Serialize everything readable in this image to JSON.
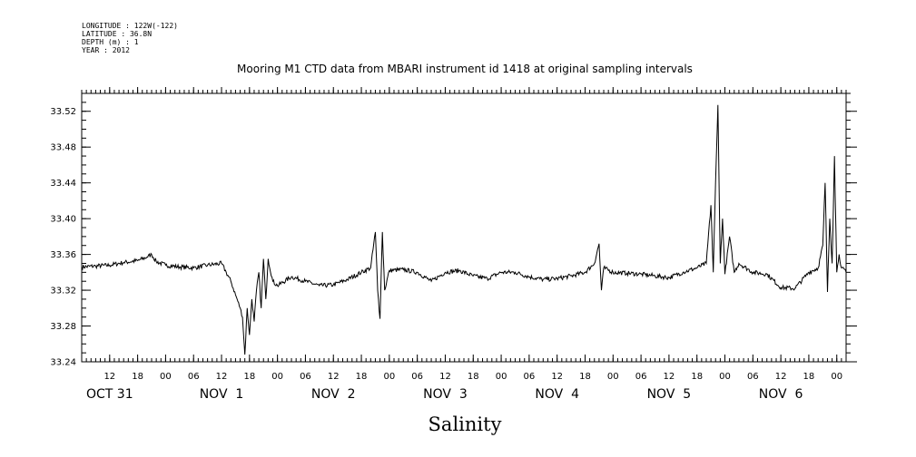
{
  "meta": {
    "longitude": "LONGITUDE : 122W(-122)",
    "latitude": "LATITUDE : 36.8N",
    "depth": "DEPTH (m) : 1",
    "year": "YEAR : 2012"
  },
  "chart_data": {
    "type": "line",
    "title": "Mooring M1 CTD data from MBARI instrument id 1418 at original sampling intervals",
    "xlabel": "Salinity",
    "ylabel": "",
    "xlim": [
      "2012-10-31 06:00",
      "2012-11-07 02:00"
    ],
    "ylim": [
      33.24,
      33.54
    ],
    "y_ticks": [
      33.24,
      33.28,
      33.32,
      33.36,
      33.4,
      33.44,
      33.48,
      33.52
    ],
    "x_hour_ticks": [
      {
        "t": "2012-10-31 12:00",
        "label": "12"
      },
      {
        "t": "2012-10-31 18:00",
        "label": "18"
      },
      {
        "t": "2012-11-01 00:00",
        "label": "00"
      },
      {
        "t": "2012-11-01 06:00",
        "label": "06"
      },
      {
        "t": "2012-11-01 12:00",
        "label": "12"
      },
      {
        "t": "2012-11-01 18:00",
        "label": "18"
      },
      {
        "t": "2012-11-02 00:00",
        "label": "00"
      },
      {
        "t": "2012-11-02 06:00",
        "label": "06"
      },
      {
        "t": "2012-11-02 12:00",
        "label": "12"
      },
      {
        "t": "2012-11-02 18:00",
        "label": "18"
      },
      {
        "t": "2012-11-03 00:00",
        "label": "00"
      },
      {
        "t": "2012-11-03 06:00",
        "label": "06"
      },
      {
        "t": "2012-11-03 12:00",
        "label": "12"
      },
      {
        "t": "2012-11-03 18:00",
        "label": "18"
      },
      {
        "t": "2012-11-04 00:00",
        "label": "00"
      },
      {
        "t": "2012-11-04 06:00",
        "label": "06"
      },
      {
        "t": "2012-11-04 12:00",
        "label": "12"
      },
      {
        "t": "2012-11-04 18:00",
        "label": "18"
      },
      {
        "t": "2012-11-05 00:00",
        "label": "00"
      },
      {
        "t": "2012-11-05 06:00",
        "label": "06"
      },
      {
        "t": "2012-11-05 12:00",
        "label": "12"
      },
      {
        "t": "2012-11-05 18:00",
        "label": "18"
      },
      {
        "t": "2012-11-06 00:00",
        "label": "00"
      },
      {
        "t": "2012-11-06 06:00",
        "label": "06"
      },
      {
        "t": "2012-11-06 12:00",
        "label": "12"
      },
      {
        "t": "2012-11-06 18:00",
        "label": "18"
      },
      {
        "t": "2012-11-07 00:00",
        "label": "00"
      }
    ],
    "x_day_labels": [
      {
        "t": "2012-10-31 12:00",
        "label": "OCT 31"
      },
      {
        "t": "2012-11-01 12:00",
        "label": "NOV  1"
      },
      {
        "t": "2012-11-02 12:00",
        "label": "NOV  2"
      },
      {
        "t": "2012-11-03 12:00",
        "label": "NOV  3"
      },
      {
        "t": "2012-11-04 12:00",
        "label": "NOV  4"
      },
      {
        "t": "2012-11-05 12:00",
        "label": "NOV  5"
      },
      {
        "t": "2012-11-06 12:00",
        "label": "NOV  6"
      }
    ],
    "grid": false,
    "series": [
      {
        "color": "#000000",
        "points": [
          [
            "2012-10-31 06:00",
            33.346
          ],
          [
            "2012-10-31 09:00",
            33.347
          ],
          [
            "2012-10-31 12:00",
            33.348
          ],
          [
            "2012-10-31 15:00",
            33.351
          ],
          [
            "2012-10-31 18:00",
            33.353
          ],
          [
            "2012-10-31 20:00",
            33.357
          ],
          [
            "2012-10-31 21:00",
            33.36
          ],
          [
            "2012-10-31 22:00",
            33.352
          ],
          [
            "2012-11-01 00:00",
            33.348
          ],
          [
            "2012-11-01 03:00",
            33.346
          ],
          [
            "2012-11-01 06:00",
            33.345
          ],
          [
            "2012-11-01 09:00",
            33.348
          ],
          [
            "2012-11-01 12:00",
            33.35
          ],
          [
            "2012-11-01 13:00",
            33.34
          ],
          [
            "2012-11-01 14:00",
            33.33
          ],
          [
            "2012-11-01 15:00",
            33.315
          ],
          [
            "2012-11-01 16:00",
            33.3
          ],
          [
            "2012-11-01 16:30",
            33.29
          ],
          [
            "2012-11-01 17:00",
            33.248
          ],
          [
            "2012-11-01 17:30",
            33.3
          ],
          [
            "2012-11-01 18:00",
            33.27
          ],
          [
            "2012-11-01 18:30",
            33.31
          ],
          [
            "2012-11-01 19:00",
            33.285
          ],
          [
            "2012-11-01 19:30",
            33.32
          ],
          [
            "2012-11-01 20:00",
            33.34
          ],
          [
            "2012-11-01 20:30",
            33.3
          ],
          [
            "2012-11-01 21:00",
            33.355
          ],
          [
            "2012-11-01 21:30",
            33.31
          ],
          [
            "2012-11-01 22:00",
            33.355
          ],
          [
            "2012-11-01 23:00",
            33.33
          ],
          [
            "2012-11-02 00:00",
            33.325
          ],
          [
            "2012-11-02 03:00",
            33.335
          ],
          [
            "2012-11-02 06:00",
            33.33
          ],
          [
            "2012-11-02 09:00",
            33.325
          ],
          [
            "2012-11-02 12:00",
            33.326
          ],
          [
            "2012-11-02 15:00",
            33.332
          ],
          [
            "2012-11-02 18:00",
            33.34
          ],
          [
            "2012-11-02 20:00",
            33.345
          ],
          [
            "2012-11-02 21:00",
            33.385
          ],
          [
            "2012-11-02 21:30",
            33.32
          ],
          [
            "2012-11-02 22:00",
            33.288
          ],
          [
            "2012-11-02 22:30",
            33.385
          ],
          [
            "2012-11-02 23:00",
            33.32
          ],
          [
            "2012-11-03 00:00",
            33.342
          ],
          [
            "2012-11-03 03:00",
            33.343
          ],
          [
            "2012-11-03 06:00",
            33.34
          ],
          [
            "2012-11-03 09:00",
            33.33
          ],
          [
            "2012-11-03 12:00",
            33.34
          ],
          [
            "2012-11-03 15:00",
            33.342
          ],
          [
            "2012-11-03 18:00",
            33.336
          ],
          [
            "2012-11-03 21:00",
            33.333
          ],
          [
            "2012-11-04 00:00",
            33.34
          ],
          [
            "2012-11-04 03:00",
            33.34
          ],
          [
            "2012-11-04 06:00",
            33.335
          ],
          [
            "2012-11-04 09:00",
            33.332
          ],
          [
            "2012-11-04 12:00",
            33.333
          ],
          [
            "2012-11-04 15:00",
            33.336
          ],
          [
            "2012-11-04 18:00",
            33.34
          ],
          [
            "2012-11-04 20:00",
            33.35
          ],
          [
            "2012-11-04 21:00",
            33.372
          ],
          [
            "2012-11-04 21:30",
            33.32
          ],
          [
            "2012-11-04 22:00",
            33.345
          ],
          [
            "2012-11-05 00:00",
            33.34
          ],
          [
            "2012-11-05 03:00",
            33.339
          ],
          [
            "2012-11-05 06:00",
            33.338
          ],
          [
            "2012-11-05 09:00",
            33.336
          ],
          [
            "2012-11-05 12:00",
            33.334
          ],
          [
            "2012-11-05 15:00",
            33.34
          ],
          [
            "2012-11-05 18:00",
            33.345
          ],
          [
            "2012-11-05 20:00",
            33.35
          ],
          [
            "2012-11-05 21:00",
            33.415
          ],
          [
            "2012-11-05 21:30",
            33.34
          ],
          [
            "2012-11-05 22:00",
            33.44
          ],
          [
            "2012-11-05 22:30",
            33.527
          ],
          [
            "2012-11-05 23:00",
            33.35
          ],
          [
            "2012-11-05 23:30",
            33.4
          ],
          [
            "2012-11-06 00:00",
            33.338
          ],
          [
            "2012-11-06 01:00",
            33.38
          ],
          [
            "2012-11-06 02:00",
            33.34
          ],
          [
            "2012-11-06 03:00",
            33.35
          ],
          [
            "2012-11-06 06:00",
            33.34
          ],
          [
            "2012-11-06 09:00",
            33.338
          ],
          [
            "2012-11-06 12:00",
            33.323
          ],
          [
            "2012-11-06 15:00",
            33.322
          ],
          [
            "2012-11-06 18:00",
            33.34
          ],
          [
            "2012-11-06 20:00",
            33.345
          ],
          [
            "2012-11-06 21:00",
            33.37
          ],
          [
            "2012-11-06 21:30",
            33.44
          ],
          [
            "2012-11-06 22:00",
            33.318
          ],
          [
            "2012-11-06 22:30",
            33.4
          ],
          [
            "2012-11-06 23:00",
            33.35
          ],
          [
            "2012-11-06 23:30",
            33.47
          ],
          [
            "2012-11-07 00:00",
            33.34
          ],
          [
            "2012-11-07 00:30",
            33.36
          ],
          [
            "2012-11-07 01:00",
            33.345
          ],
          [
            "2012-11-07 02:00",
            33.34
          ]
        ]
      }
    ]
  }
}
